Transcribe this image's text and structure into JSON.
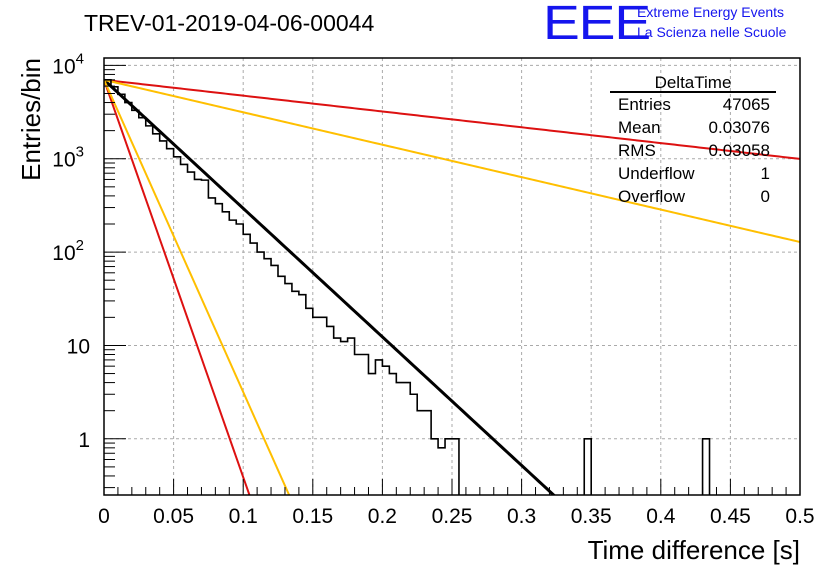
{
  "header": {
    "title": "TREV-01-2019-04-06-00044",
    "logo_text": "EEE",
    "logo_line1": "Extreme Energy Events",
    "logo_line2": "La Scienza nelle Scuole",
    "logo_color": "#1515ee"
  },
  "chart_data": {
    "type": "histogram",
    "xlabel": "Time difference [s]",
    "ylabel": "Entries/bin",
    "xlim": [
      0,
      0.5
    ],
    "ylim": [
      0.25,
      12000
    ],
    "yscale": "log",
    "grid": true,
    "x_ticks": [
      "0",
      "0.05",
      "0.1",
      "0.15",
      "0.2",
      "0.25",
      "0.3",
      "0.35",
      "0.4",
      "0.45",
      "0.5"
    ],
    "y_ticks": [
      {
        "value": 1,
        "base": "1",
        "exp": ""
      },
      {
        "value": 10,
        "base": "10",
        "exp": ""
      },
      {
        "value": 100,
        "base": "10",
        "exp": "2"
      },
      {
        "value": 1000,
        "base": "10",
        "exp": "3"
      },
      {
        "value": 10000,
        "base": "10",
        "exp": "4"
      }
    ],
    "bin_width": 0.005,
    "histogram_counts": [
      7000,
      5900,
      4900,
      4000,
      3300,
      2750,
      2250,
      1850,
      1550,
      1280,
      1050,
      870,
      720,
      600,
      590,
      380,
      330,
      270,
      220,
      200,
      155,
      125,
      100,
      85,
      72,
      55,
      46,
      38,
      35,
      25,
      20,
      20,
      16,
      12,
      11,
      12,
      8,
      8,
      5,
      7,
      6,
      5,
      4,
      4,
      3,
      2,
      2,
      1,
      0.8,
      1,
      1,
      0,
      0,
      0,
      0,
      0,
      0,
      0,
      0,
      0,
      0,
      0,
      0,
      0,
      0,
      0,
      0,
      0,
      0,
      0,
      0,
      0,
      0,
      0,
      0,
      0,
      0,
      0,
      0,
      0,
      0,
      0,
      0,
      0,
      0,
      0,
      0,
      0,
      0,
      0,
      0,
      0,
      0,
      0,
      0,
      0,
      0,
      0,
      0,
      0
    ],
    "histogram_color": "#000000",
    "fits": [
      {
        "x0": 0,
        "y0": 7000,
        "slope_per_s": 31.7,
        "color": "#000000"
      },
      {
        "x0": 0,
        "y0": 7000,
        "slope_per_s": 3.9,
        "color": "#dd1111"
      },
      {
        "x0": 0,
        "y0": 7000,
        "slope_per_s": 8.0,
        "color": "#ffbf00"
      },
      {
        "x0": 0,
        "y0": 7000,
        "slope_per_s": 98,
        "color": "#dd1111"
      },
      {
        "x0": 0,
        "y0": 7000,
        "slope_per_s": 77,
        "color": "#ffbf00"
      }
    ],
    "stats": {
      "name": "DeltaTime",
      "rows": [
        {
          "label": "Entries",
          "value": "47065"
        },
        {
          "label": "Mean",
          "value": "0.03076"
        },
        {
          "label": "RMS",
          "value": "0.03058"
        },
        {
          "label": "Underflow",
          "value": "1"
        },
        {
          "label": "Overflow",
          "value": "0"
        }
      ]
    }
  }
}
